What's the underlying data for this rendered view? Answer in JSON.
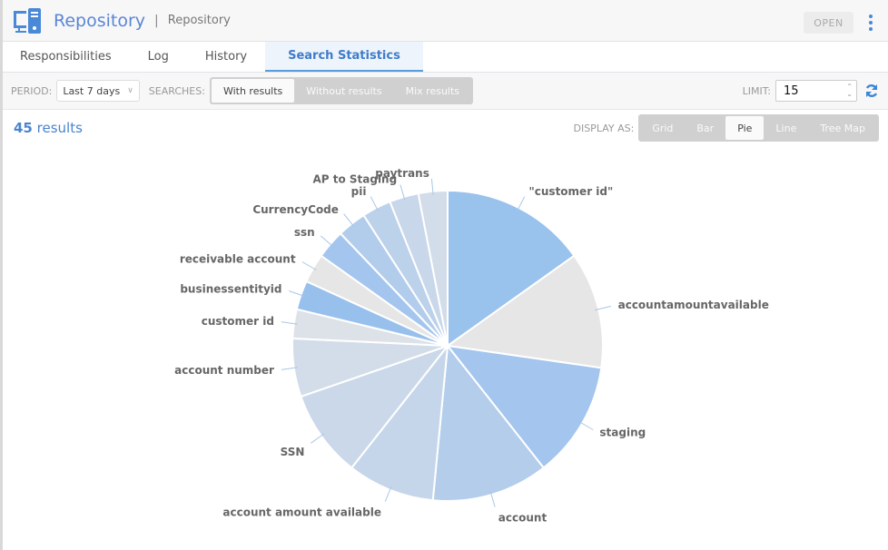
{
  "header": {
    "title": "Repository",
    "subtitle": "Repository",
    "open_label": "OPEN"
  },
  "tabs": [
    {
      "label": "Responsibilities"
    },
    {
      "label": "Log"
    },
    {
      "label": "History"
    },
    {
      "label": "Search Statistics",
      "active": true
    }
  ],
  "toolbar": {
    "period_label": "PERIOD:",
    "period_value": "Last 7 days",
    "searches_label": "SEARCHES:",
    "searches": [
      {
        "label": "With results",
        "active": true
      },
      {
        "label": "Without results"
      },
      {
        "label": "Mix results"
      }
    ],
    "limit_label": "LIMIT:",
    "limit_value": "15"
  },
  "results": {
    "count": "45",
    "label": "results"
  },
  "display": {
    "label": "DISPLAY AS:",
    "options": [
      {
        "label": "Grid"
      },
      {
        "label": "Bar"
      },
      {
        "label": "Pie",
        "active": true
      },
      {
        "label": "Line"
      },
      {
        "label": "Tree Map"
      }
    ]
  },
  "colors": {
    "accent": "#4a84cf"
  },
  "chart_data": {
    "type": "pie",
    "categories": [
      "\"customer id\"",
      "accountamountavailable",
      "staging",
      "account",
      "account amount available",
      "SSN",
      "account number",
      "customer id",
      "businessentityid",
      "receivable account",
      "ssn",
      "CurrencyCode",
      "pii",
      "AP to Staging",
      "paytrans"
    ],
    "values": [
      5,
      4,
      4,
      4,
      3,
      3,
      2,
      1,
      1,
      1,
      1,
      1,
      1,
      1,
      1
    ],
    "colors": [
      "#99c2ec",
      "#e6e6e6",
      "#a3c5ee",
      "#b3cdeb",
      "#c6d6ea",
      "#cbd8e9",
      "#d3dde9",
      "#dde2e9",
      "#98c0ec",
      "#e6e6e6",
      "#a4c5ee",
      "#b2cdec",
      "#bcd1ea",
      "#c8d7ea",
      "#d3ddea"
    ],
    "start": "12 o'clock, clockwise"
  }
}
